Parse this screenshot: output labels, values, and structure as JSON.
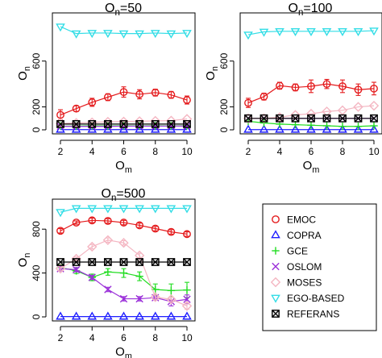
{
  "colors": {
    "EMOC": "#e41a1c",
    "COPRA": "#1f1fff",
    "GCE": "#22dd22",
    "OSLOM": "#9b30d9",
    "MOSES": "#f4b6c2",
    "EGO-BASED": "#33dde6",
    "REFERANS": "#000000"
  },
  "legend": {
    "placement": "bottom-right",
    "items": [
      {
        "label": "EMOC",
        "marker": "circle"
      },
      {
        "label": "COPRA",
        "marker": "triangle-up"
      },
      {
        "label": "GCE",
        "marker": "plus"
      },
      {
        "label": "OSLOM",
        "marker": "cross"
      },
      {
        "label": "MOSES",
        "marker": "diamond"
      },
      {
        "label": "EGO-BASED",
        "marker": "triangle-down"
      },
      {
        "label": "REFERANS",
        "marker": "boxed-x"
      }
    ]
  },
  "chart_data": [
    {
      "type": "line",
      "title": {
        "base": "O",
        "sub": "n",
        "tail": "=50"
      },
      "xlabel": {
        "base": "O",
        "sub": "m"
      },
      "ylabel": {
        "base": "O",
        "sub": "n"
      },
      "xlim": [
        2,
        10
      ],
      "ylim": [
        0,
        950
      ],
      "xticks": [
        "2",
        "4",
        "6",
        "8",
        "10"
      ],
      "yticks": [
        "0",
        "200",
        "600"
      ],
      "x": [
        2,
        3,
        4,
        5,
        6,
        7,
        8,
        9,
        10
      ],
      "series": [
        {
          "name": "EMOC",
          "values": [
            130,
            185,
            240,
            285,
            330,
            310,
            325,
            305,
            260
          ],
          "errors": [
            45,
            25,
            35,
            30,
            45,
            40,
            30,
            30,
            35
          ]
        },
        {
          "name": "COPRA",
          "values": [
            2,
            2,
            2,
            2,
            2,
            2,
            2,
            2,
            2
          ]
        },
        {
          "name": "GCE",
          "values": [
            32,
            33,
            35,
            34,
            35,
            34,
            35,
            34,
            35
          ]
        },
        {
          "name": "OSLOM",
          "values": [
            30,
            30,
            30,
            30,
            32,
            32,
            32,
            33,
            32
          ]
        },
        {
          "name": "MOSES",
          "values": [
            55,
            60,
            65,
            70,
            72,
            75,
            78,
            80,
            95
          ]
        },
        {
          "name": "EGO-BASED",
          "values": [
            900,
            840,
            845,
            845,
            840,
            840,
            845,
            840,
            845
          ]
        },
        {
          "name": "REFERANS",
          "values": [
            50,
            50,
            50,
            50,
            50,
            50,
            50,
            50,
            50
          ]
        }
      ]
    },
    {
      "type": "line",
      "title": {
        "base": "O",
        "sub": "n",
        "tail": "=100"
      },
      "xlabel": {
        "base": "O",
        "sub": "m"
      },
      "ylabel": {
        "base": "O",
        "sub": "n"
      },
      "xlim": [
        2,
        10
      ],
      "ylim": [
        0,
        950
      ],
      "xticks": [
        "2",
        "4",
        "6",
        "8",
        "10"
      ],
      "yticks": [
        "0",
        "200",
        "600"
      ],
      "x": [
        2,
        3,
        4,
        5,
        6,
        7,
        8,
        9,
        10
      ],
      "series": [
        {
          "name": "EMOC",
          "values": [
            235,
            290,
            385,
            370,
            380,
            400,
            380,
            350,
            360
          ],
          "errors": [
            40,
            30,
            30,
            30,
            55,
            40,
            55,
            50,
            55
          ]
        },
        {
          "name": "COPRA",
          "values": [
            2,
            2,
            2,
            2,
            2,
            2,
            2,
            2,
            2
          ]
        },
        {
          "name": "GCE",
          "values": [
            75,
            60,
            50,
            45,
            40,
            35,
            30,
            30,
            35
          ]
        },
        {
          "name": "OSLOM",
          "values": [
            100,
            100,
            100,
            100,
            100,
            100,
            100,
            100,
            100
          ]
        },
        {
          "name": "MOSES",
          "values": [
            100,
            100,
            110,
            130,
            140,
            160,
            170,
            200,
            210
          ]
        },
        {
          "name": "EGO-BASED",
          "values": [
            830,
            855,
            860,
            860,
            860,
            860,
            860,
            860,
            865
          ]
        },
        {
          "name": "REFERANS",
          "values": [
            100,
            100,
            100,
            100,
            100,
            100,
            100,
            100,
            100
          ]
        }
      ]
    },
    {
      "type": "line",
      "title": {
        "base": "O",
        "sub": "n",
        "tail": "=500"
      },
      "xlabel": {
        "base": "O",
        "sub": "m"
      },
      "ylabel": {
        "base": "O",
        "sub": "n"
      },
      "xlim": [
        2,
        10
      ],
      "ylim": [
        0,
        1000
      ],
      "xticks": [
        "2",
        "4",
        "6",
        "8",
        "10"
      ],
      "yticks": [
        "0",
        "400",
        "800"
      ],
      "x": [
        2,
        3,
        4,
        5,
        6,
        7,
        8,
        9,
        10
      ],
      "series": [
        {
          "name": "EMOC",
          "values": [
            785,
            860,
            880,
            875,
            860,
            835,
            805,
            775,
            755
          ],
          "errors": [
            20,
            15,
            20,
            20,
            20,
            20,
            20,
            20,
            20
          ]
        },
        {
          "name": "COPRA",
          "values": [
            3,
            3,
            3,
            3,
            3,
            3,
            3,
            3,
            3
          ]
        },
        {
          "name": "GCE",
          "values": [
            450,
            420,
            360,
            410,
            400,
            370,
            250,
            240,
            245
          ],
          "errors": [
            25,
            25,
            30,
            30,
            40,
            40,
            50,
            60,
            70
          ]
        },
        {
          "name": "OSLOM",
          "values": [
            440,
            430,
            360,
            250,
            165,
            165,
            175,
            140,
            160
          ],
          "errors": [
            20,
            20,
            20,
            20,
            20,
            20,
            20,
            40,
            40
          ]
        },
        {
          "name": "MOSES",
          "values": [
            440,
            530,
            640,
            700,
            675,
            560,
            180,
            160,
            100
          ],
          "errors": [
            15,
            15,
            20,
            20,
            20,
            20,
            20,
            20,
            30
          ]
        },
        {
          "name": "EGO-BASED",
          "values": [
            955,
            990,
            990,
            990,
            990,
            990,
            990,
            990,
            990
          ]
        },
        {
          "name": "REFERANS",
          "values": [
            500,
            500,
            500,
            500,
            500,
            500,
            500,
            500,
            500
          ]
        }
      ]
    }
  ]
}
